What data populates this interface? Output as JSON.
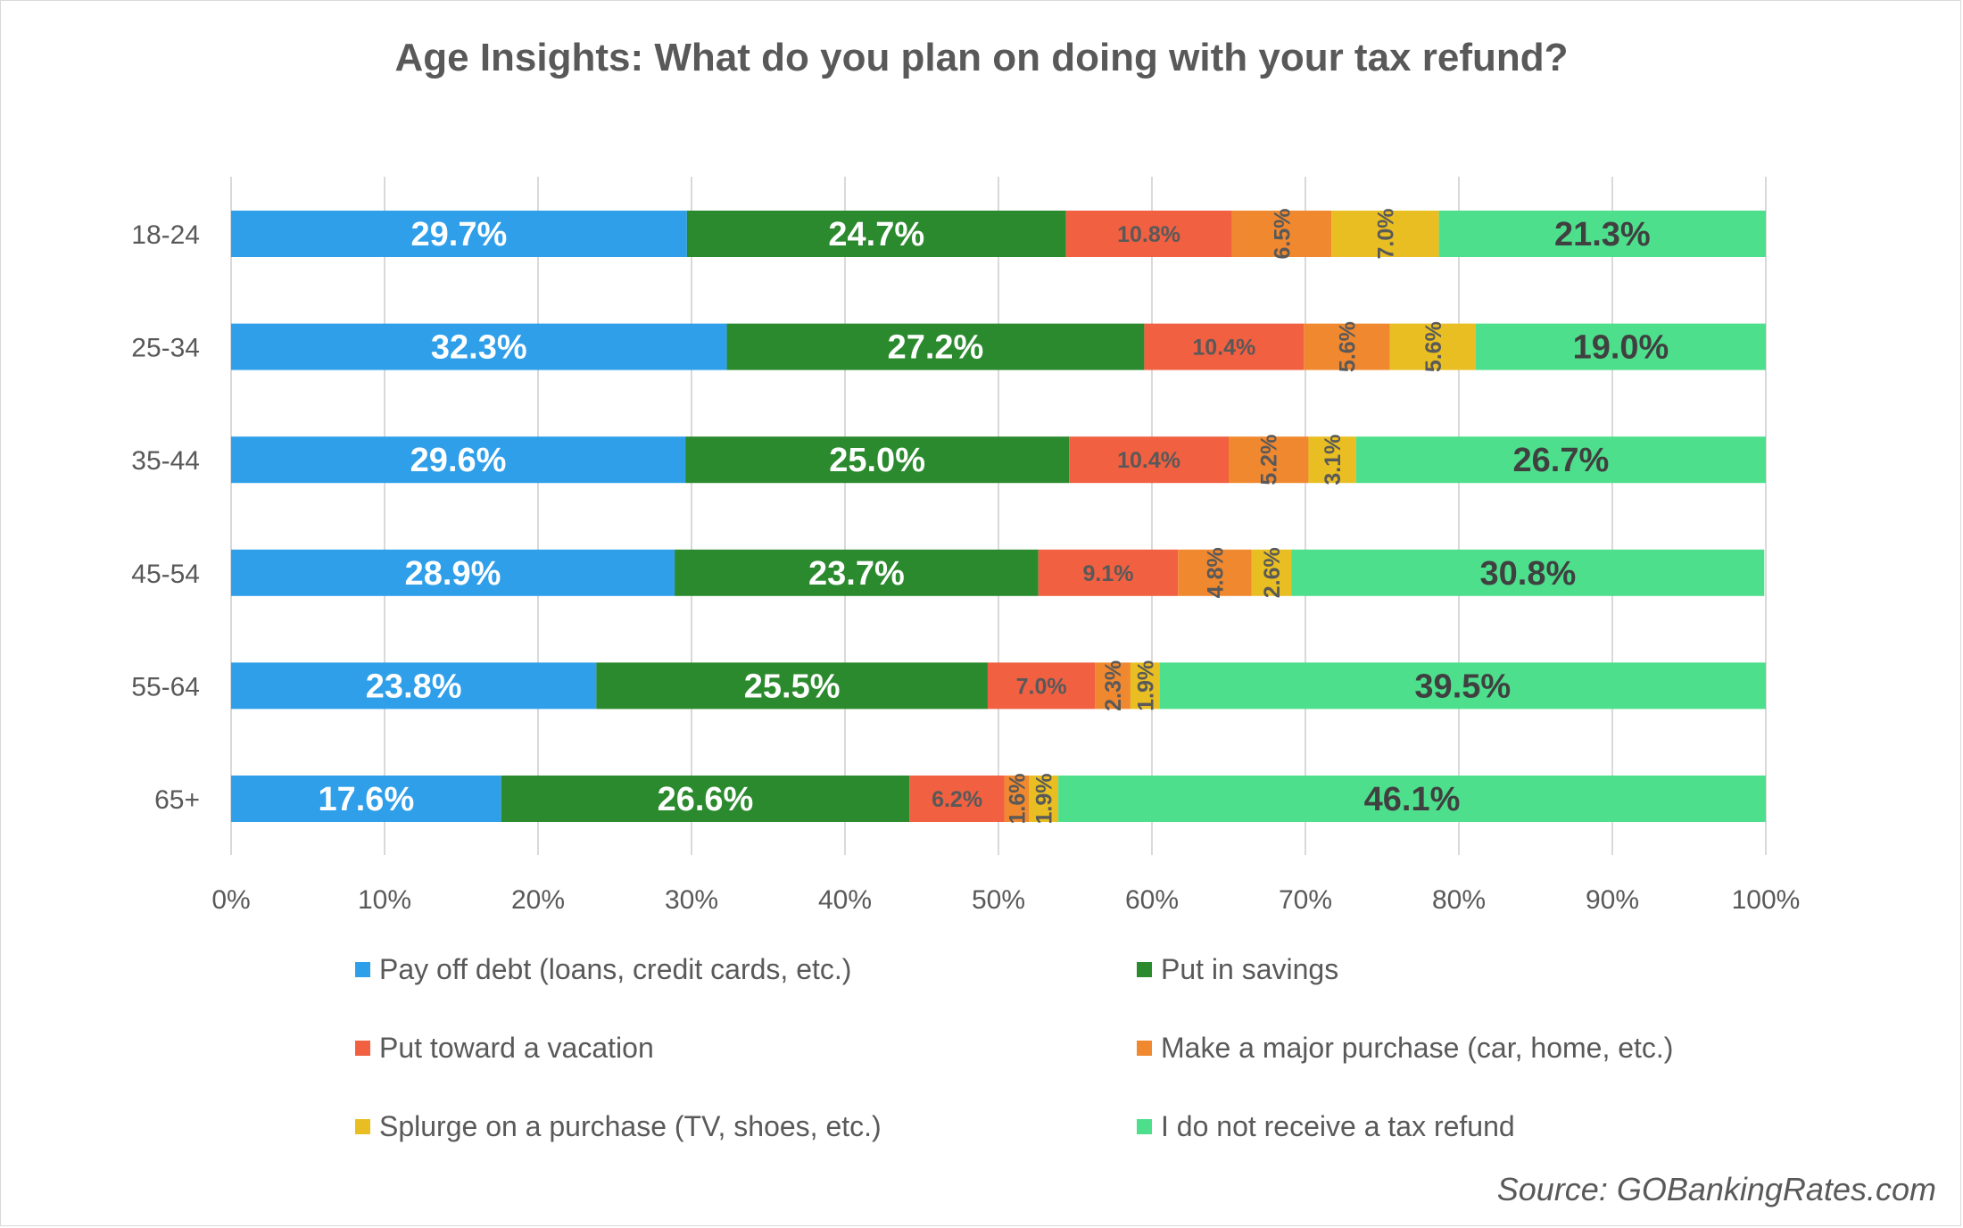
{
  "chart_data": {
    "type": "bar",
    "orientation": "horizontal",
    "stacked": true,
    "title": "Age Insights: What do you plan on doing with your tax refund?",
    "categories": [
      "18-24",
      "25-34",
      "35-44",
      "45-54",
      "55-64",
      "65+"
    ],
    "series": [
      {
        "name": "Pay off debt (loans, credit cards, etc.)",
        "color": "#2f9fea",
        "values": [
          29.7,
          32.3,
          29.6,
          28.9,
          23.8,
          17.6
        ]
      },
      {
        "name": "Put in savings",
        "color": "#2b8a2e",
        "values": [
          24.7,
          27.2,
          25.0,
          23.7,
          25.5,
          26.6
        ]
      },
      {
        "name": "Put toward a vacation",
        "color": "#f06041",
        "values": [
          10.8,
          10.4,
          10.4,
          9.1,
          7.0,
          6.2
        ]
      },
      {
        "name": "Make a major purchase (car, home, etc.)",
        "color": "#f0882f",
        "values": [
          6.5,
          5.6,
          5.2,
          4.8,
          2.3,
          1.6
        ]
      },
      {
        "name": "Splurge on a purchase (TV, shoes, etc.)",
        "color": "#e8be22",
        "values": [
          7.0,
          5.6,
          3.1,
          2.6,
          1.9,
          1.9
        ]
      },
      {
        "name": "I do not receive a tax refund",
        "color": "#4ddf8c",
        "values": [
          21.3,
          19.0,
          26.7,
          30.8,
          39.5,
          46.1
        ]
      }
    ],
    "data_labels": [
      [
        "29.7%",
        "24.7%",
        "10.8%",
        "6.5%",
        "7.0%",
        "21.3%"
      ],
      [
        "32.3%",
        "27.2%",
        "10.4%",
        "5.6%",
        "5.6%",
        "19.0%"
      ],
      [
        "29.6%",
        "25.0%",
        "10.4%",
        "5.2%",
        "3.1%",
        "26.7%"
      ],
      [
        "28.9%",
        "23.7%",
        "9.1%",
        "4.8%",
        "2.6%",
        "30.8%"
      ],
      [
        "23.8%",
        "25.5%",
        "7.0%",
        "2.3%",
        "1.9%",
        "39.5%"
      ],
      [
        "17.6%",
        "26.6%",
        "6.2%",
        "1.6%",
        "1.9%",
        "46.1%"
      ]
    ],
    "xlim": [
      0,
      100
    ],
    "x_ticks": [
      "0%",
      "10%",
      "20%",
      "30%",
      "40%",
      "50%",
      "60%",
      "70%",
      "80%",
      "90%",
      "100%"
    ],
    "grid": true,
    "legend_position": "bottom"
  },
  "source": "Source: GOBankingRates.com"
}
